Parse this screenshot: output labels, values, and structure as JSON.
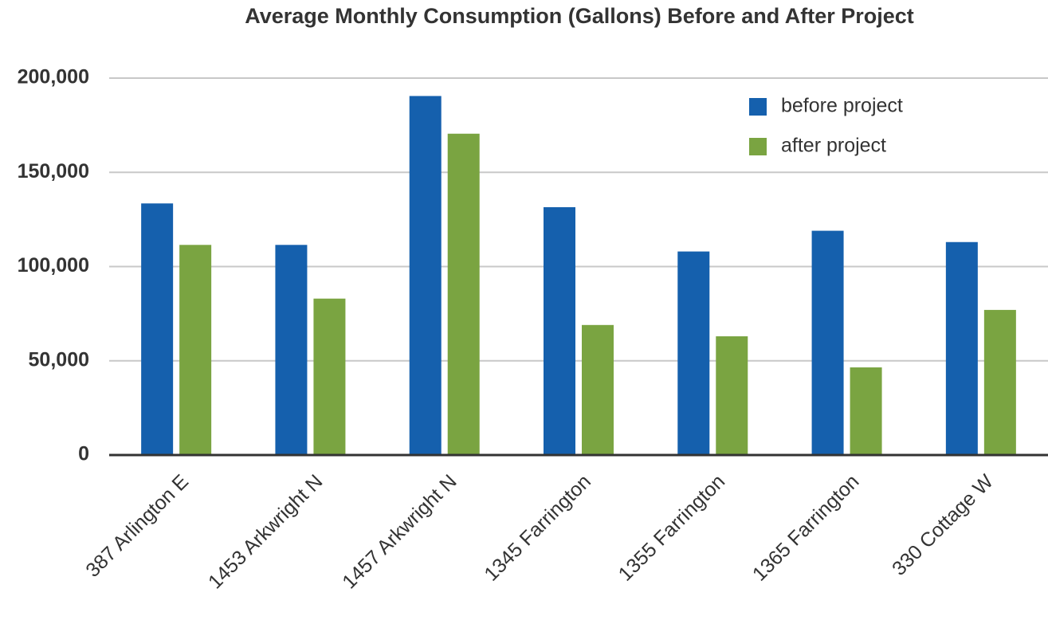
{
  "chart_data": {
    "type": "bar",
    "title": "Average Monthly Consumption (Gallons) Before and After Project",
    "categories": [
      "387 Arlington E",
      "1453 Arkwright N",
      "1457 Arkwright N",
      "1345 Farrington",
      "1355 Farrington",
      "1365 Farrington",
      "330 Cottage W"
    ],
    "series": [
      {
        "name": "before project",
        "color": "#1560ad",
        "values": [
          133500,
          111500,
          190500,
          131500,
          108000,
          119000,
          113000
        ]
      },
      {
        "name": "after project",
        "color": "#7aa441",
        "values": [
          111500,
          83000,
          170500,
          69000,
          63000,
          46500,
          77000
        ]
      }
    ],
    "ylim": [
      0,
      200000
    ],
    "yticks": [
      0,
      {
        "value": 50000,
        "label": "50,000"
      },
      {
        "value": 100000,
        "label": "100,000"
      },
      {
        "value": 150000,
        "label": "150,000"
      },
      {
        "value": 200000,
        "label": "200,000"
      }
    ],
    "grid": true,
    "legend": "top-right"
  }
}
